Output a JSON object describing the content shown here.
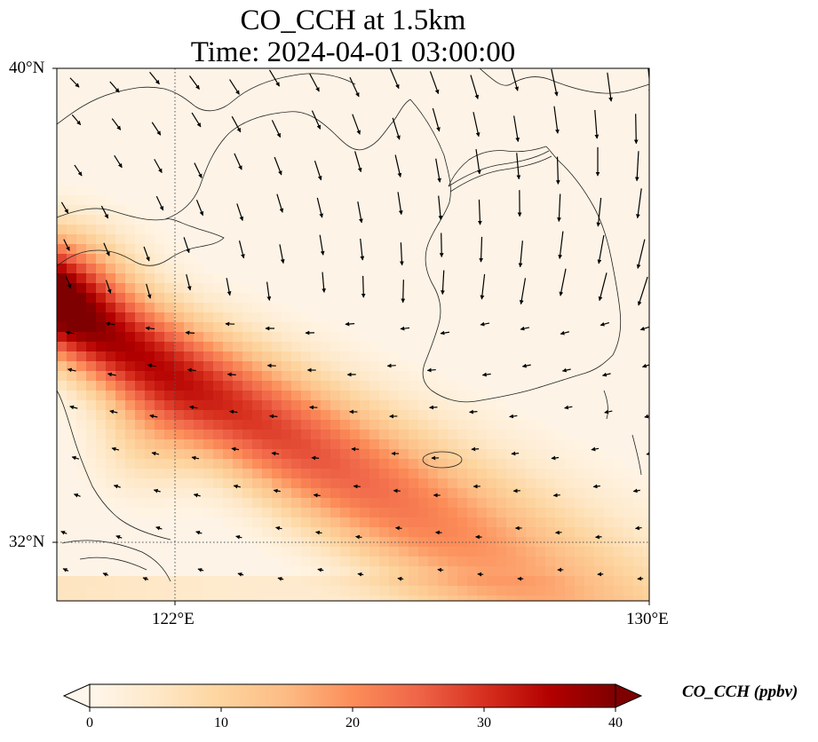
{
  "title": {
    "line1": "CO_CCH at 1.5km",
    "line2": "Time: 2024-04-01 03:00:00"
  },
  "axes": {
    "lat_ticks": [
      "40°N",
      "32°N"
    ],
    "lon_ticks": [
      "122°E",
      "130°E"
    ]
  },
  "map": {
    "variable": "CO_CCH",
    "level": "1.5km",
    "lon_range": [
      120,
      130
    ],
    "lat_range": [
      31,
      40
    ],
    "gridlines": {
      "lon": [
        122
      ],
      "lat": [
        32
      ]
    },
    "plume": "high CO band extending from the Yangtze River delta northeastward/eastward across the Yellow Sea toward southern Korea and the East China Sea"
  },
  "colorbar": {
    "label": "CO_CCH (ppbv)",
    "min": 0,
    "max": 40,
    "ticks": [
      "0",
      "10",
      "20",
      "30",
      "40"
    ],
    "colormap": "OrRd",
    "extend": "both",
    "colors": [
      "#fff7ec",
      "#fee8c8",
      "#fdd49e",
      "#fdbb84",
      "#fc8d59",
      "#ef6548",
      "#d7301f",
      "#b30000",
      "#7f0000"
    ]
  }
}
